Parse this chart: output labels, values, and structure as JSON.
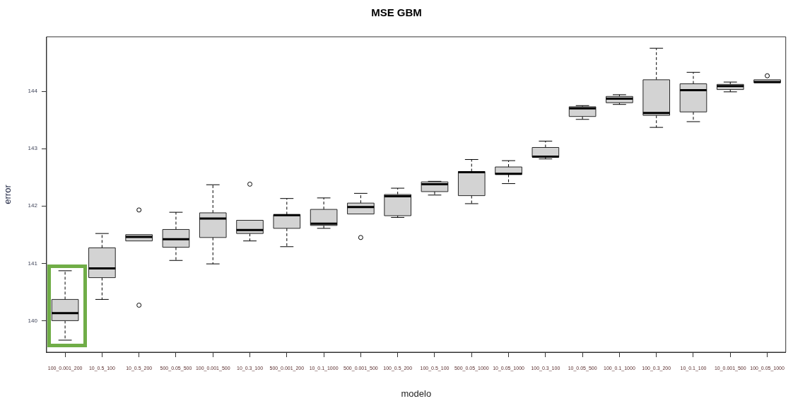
{
  "chart_data": {
    "type": "box",
    "title": "MSE GBM",
    "xlabel": "modelo",
    "ylabel": "error",
    "categories": [
      "100_0.001_200",
      "10_0.5_100",
      "10_0.5_200",
      "500_0.05_500",
      "100_0.001_500",
      "10_0.3_100",
      "500_0.001_200",
      "10_0.1_1000",
      "500_0.001_500",
      "100_0.5_200",
      "100_0.5_100",
      "500_0.05_1000",
      "10_0.05_1000",
      "100_0.3_100",
      "10_0.05_500",
      "100_0.1_1000",
      "100_0.3_200",
      "10_0.1_100",
      "10_0.001_500",
      "100_0.05_1000"
    ],
    "color": "#d3d3d3",
    "ylim": [
      139.45,
      144.95
    ],
    "yticks": [
      140,
      141,
      142,
      143,
      144
    ],
    "boxes": [
      {
        "low": 139.66,
        "q1": 140.0,
        "median": 140.13,
        "q3": 140.37,
        "high": 140.87
      },
      {
        "low": 140.37,
        "q1": 140.75,
        "median": 140.91,
        "q3": 141.27,
        "high": 141.52
      },
      {
        "low": 141.39,
        "q1": 141.39,
        "median": 141.46,
        "q3": 141.5,
        "high": 141.5,
        "outliers": [
          141.93,
          140.27
        ]
      },
      {
        "low": 141.05,
        "q1": 141.28,
        "median": 141.42,
        "q3": 141.59,
        "high": 141.89
      },
      {
        "low": 140.99,
        "q1": 141.45,
        "median": 141.78,
        "q3": 141.88,
        "high": 142.37
      },
      {
        "low": 141.39,
        "q1": 141.52,
        "median": 141.58,
        "q3": 141.75,
        "high": 141.75,
        "outliers": [
          142.38
        ]
      },
      {
        "low": 141.29,
        "q1": 141.61,
        "median": 141.84,
        "q3": 141.85,
        "high": 142.13
      },
      {
        "low": 141.61,
        "q1": 141.66,
        "median": 141.69,
        "q3": 141.94,
        "high": 142.14
      },
      {
        "low": 141.86,
        "q1": 141.86,
        "median": 141.98,
        "q3": 142.05,
        "high": 142.22,
        "outliers": [
          141.45
        ]
      },
      {
        "low": 141.8,
        "q1": 141.83,
        "median": 142.17,
        "q3": 142.2,
        "high": 142.31
      },
      {
        "low": 142.19,
        "q1": 142.25,
        "median": 142.38,
        "q3": 142.42,
        "high": 142.43
      },
      {
        "low": 142.04,
        "q1": 142.18,
        "median": 142.59,
        "q3": 142.6,
        "high": 142.81
      },
      {
        "low": 142.39,
        "q1": 142.55,
        "median": 142.56,
        "q3": 142.68,
        "high": 142.79
      },
      {
        "low": 142.82,
        "q1": 142.85,
        "median": 142.86,
        "q3": 143.02,
        "high": 143.13
      },
      {
        "low": 143.51,
        "q1": 143.56,
        "median": 143.7,
        "q3": 143.73,
        "high": 143.75
      },
      {
        "low": 143.77,
        "q1": 143.8,
        "median": 143.87,
        "q3": 143.91,
        "high": 143.94
      },
      {
        "low": 143.37,
        "q1": 143.58,
        "median": 143.62,
        "q3": 144.2,
        "high": 144.75
      },
      {
        "low": 143.47,
        "q1": 143.64,
        "median": 144.02,
        "q3": 144.13,
        "high": 144.33
      },
      {
        "low": 143.99,
        "q1": 144.03,
        "median": 144.09,
        "q3": 144.12,
        "high": 144.16
      },
      {
        "low": 144.15,
        "q1": 144.15,
        "median": 144.16,
        "q3": 144.2,
        "high": 144.2,
        "outliers": [
          144.27
        ]
      }
    ]
  }
}
